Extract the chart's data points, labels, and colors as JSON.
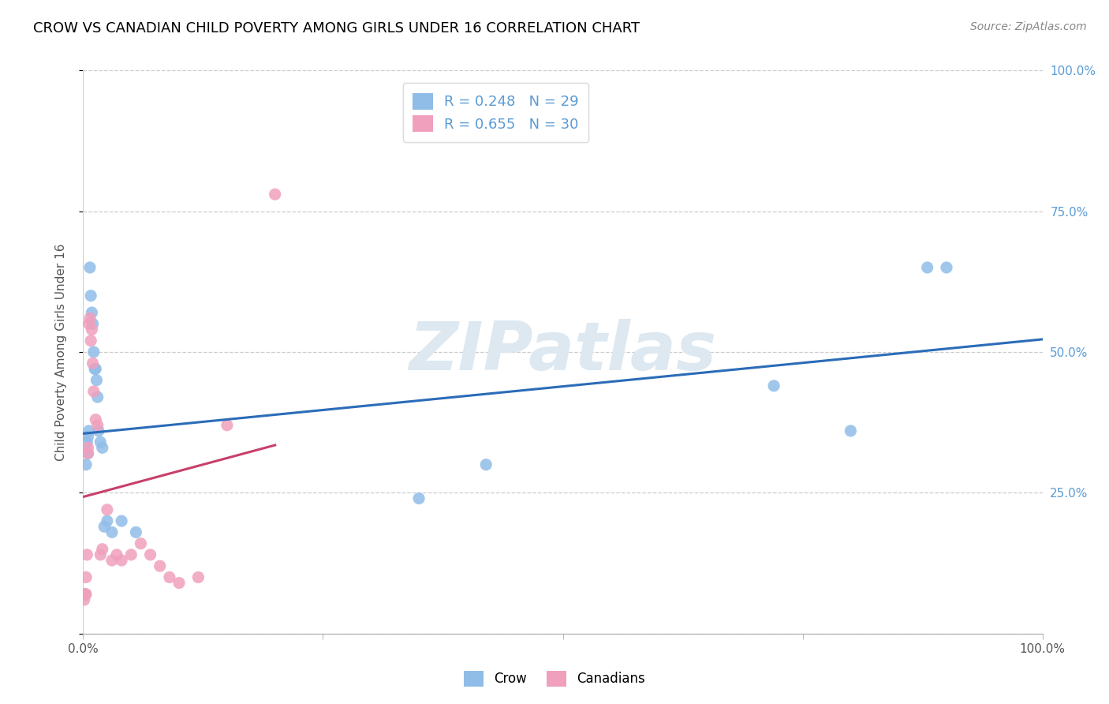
{
  "title": "CROW VS CANADIAN CHILD POVERTY AMONG GIRLS UNDER 16 CORRELATION CHART",
  "source": "Source: ZipAtlas.com",
  "ylabel": "Child Poverty Among Girls Under 16",
  "xlim": [
    0,
    1.0
  ],
  "ylim": [
    0,
    1.0
  ],
  "crow_color": "#90BDE8",
  "canadian_color": "#F0A0BC",
  "crow_line_color": "#2B6CB8",
  "canadian_line_color": "#C8406A",
  "crow_R": 0.248,
  "crow_N": 29,
  "canadian_R": 0.655,
  "canadian_N": 30,
  "crow_x": [
    0.002,
    0.003,
    0.004,
    0.005,
    0.005,
    0.006,
    0.007,
    0.008,
    0.009,
    0.01,
    0.011,
    0.012,
    0.013,
    0.014,
    0.015,
    0.016,
    0.018,
    0.02,
    0.022,
    0.025,
    0.03,
    0.04,
    0.055,
    0.35,
    0.42,
    0.72,
    0.8,
    0.88,
    0.9
  ],
  "crow_y": [
    0.07,
    0.3,
    0.34,
    0.32,
    0.35,
    0.36,
    0.65,
    0.6,
    0.57,
    0.55,
    0.5,
    0.47,
    0.47,
    0.45,
    0.42,
    0.36,
    0.34,
    0.33,
    0.19,
    0.2,
    0.18,
    0.2,
    0.18,
    0.24,
    0.3,
    0.44,
    0.36,
    0.65,
    0.65
  ],
  "canadian_x": [
    0.001,
    0.002,
    0.003,
    0.003,
    0.004,
    0.005,
    0.005,
    0.006,
    0.007,
    0.008,
    0.009,
    0.01,
    0.011,
    0.013,
    0.015,
    0.018,
    0.02,
    0.025,
    0.03,
    0.035,
    0.04,
    0.05,
    0.06,
    0.07,
    0.08,
    0.09,
    0.1,
    0.12,
    0.15,
    0.2
  ],
  "canadian_y": [
    0.06,
    0.07,
    0.07,
    0.1,
    0.14,
    0.32,
    0.33,
    0.55,
    0.56,
    0.52,
    0.54,
    0.48,
    0.43,
    0.38,
    0.37,
    0.14,
    0.15,
    0.22,
    0.13,
    0.14,
    0.13,
    0.14,
    0.16,
    0.14,
    0.12,
    0.1,
    0.09,
    0.1,
    0.37,
    0.78
  ],
  "marker_size": 120,
  "legend_fontsize": 13,
  "title_fontsize": 13,
  "axis_label_fontsize": 11,
  "watermark_text": "ZIPatlas"
}
